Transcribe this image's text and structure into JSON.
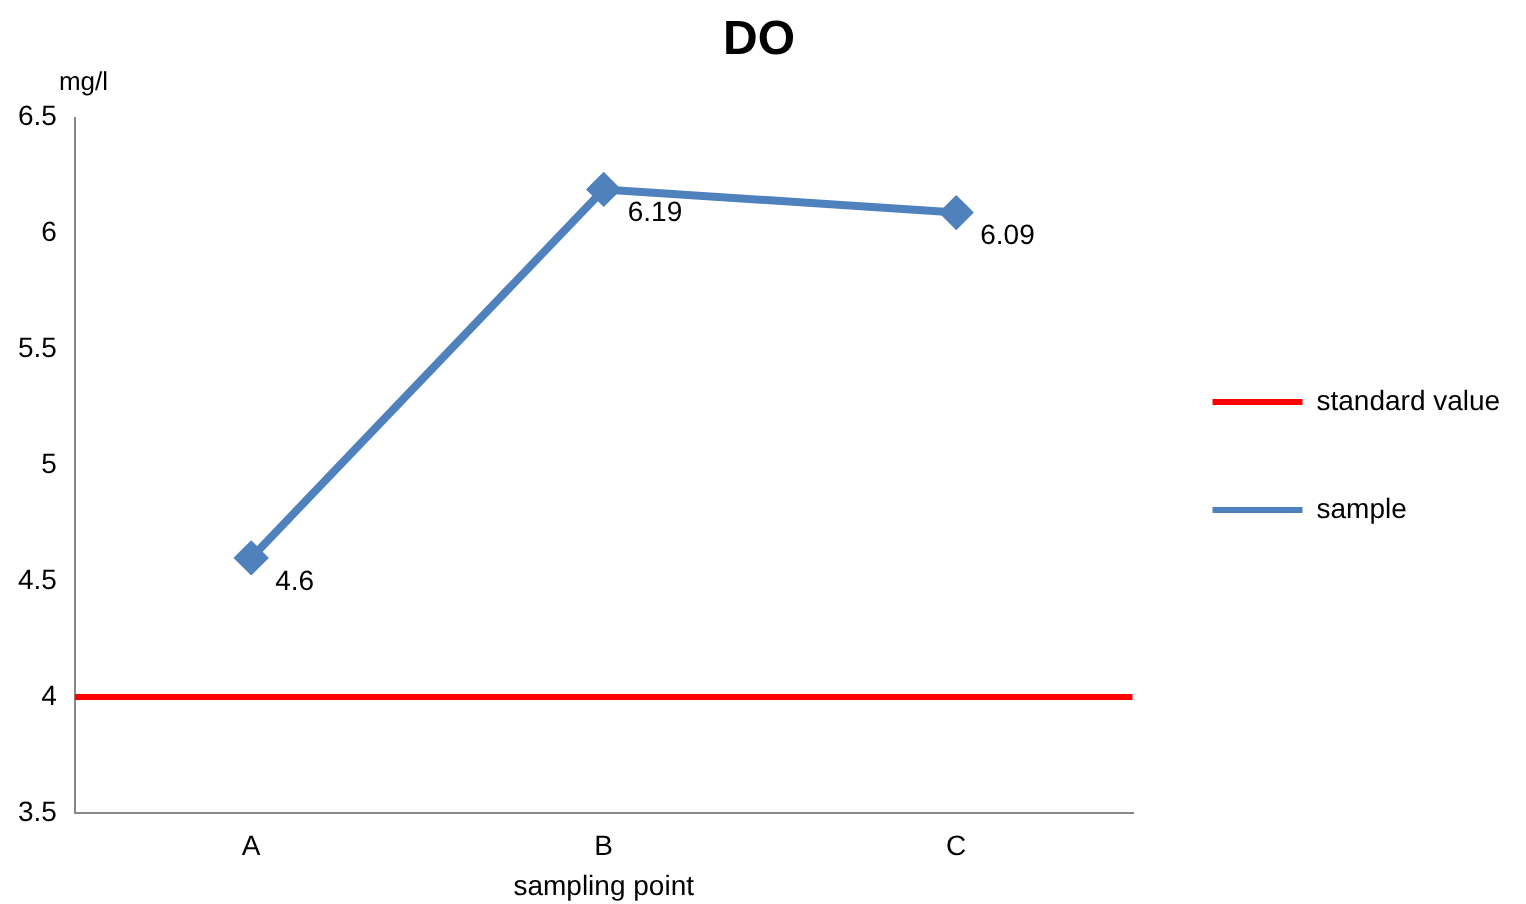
{
  "chart_data": {
    "type": "line",
    "title": "DO",
    "xlabel": "sampling point",
    "ylabel": "mg/l",
    "categories": [
      "A",
      "B",
      "C"
    ],
    "series": [
      {
        "name": "sample",
        "color": "#4f81bd",
        "values": [
          4.6,
          6.19,
          6.09
        ]
      }
    ],
    "ref_lines": [
      {
        "axis": "y",
        "value": 4,
        "label": "standard value",
        "color": "#ff0000"
      }
    ],
    "ylim": [
      3.5,
      6.5
    ],
    "yticks": [
      3.5,
      4,
      4.5,
      5,
      5.5,
      6,
      6.5
    ],
    "grid": false,
    "legend": "right",
    "marker": "diamond",
    "line_style": "solid",
    "data_labels": true
  }
}
